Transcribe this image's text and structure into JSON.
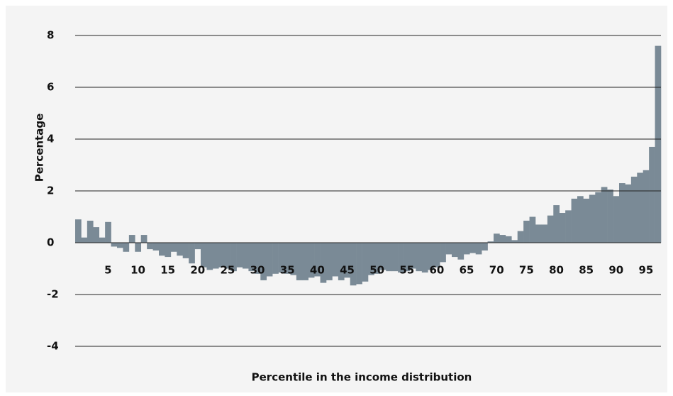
{
  "chart_data": {
    "type": "bar",
    "y_label": "Percentage",
    "x_label": "Percentile in the income distribution",
    "categories": [
      null,
      null,
      null,
      null,
      null,
      "5",
      null,
      null,
      null,
      null,
      "10",
      null,
      null,
      null,
      null,
      "15",
      null,
      null,
      null,
      null,
      "20",
      null,
      null,
      null,
      null,
      "25",
      null,
      null,
      null,
      null,
      "30",
      null,
      null,
      null,
      null,
      "35",
      null,
      null,
      null,
      null,
      "40",
      null,
      null,
      null,
      null,
      "45",
      null,
      null,
      null,
      null,
      "50",
      null,
      null,
      null,
      null,
      "55",
      null,
      null,
      null,
      null,
      "60",
      null,
      null,
      null,
      null,
      "65",
      null,
      null,
      null,
      null,
      "70",
      null,
      null,
      null,
      null,
      "75",
      null,
      null,
      null,
      null,
      "80",
      null,
      null,
      null,
      null,
      "85",
      null,
      null,
      null,
      null,
      "90",
      null,
      null,
      null,
      null,
      "95",
      null,
      null
    ],
    "values": [
      0.9,
      0.2,
      0.85,
      0.6,
      0.2,
      0.8,
      -0.15,
      -0.2,
      -0.35,
      0.3,
      -0.35,
      0.3,
      -0.25,
      -0.3,
      -0.5,
      -0.55,
      -0.35,
      -0.5,
      -0.6,
      -0.8,
      -0.25,
      -0.95,
      -1.05,
      -1.0,
      -0.95,
      -1.0,
      -1.1,
      -0.95,
      -1.0,
      -1.1,
      -1.2,
      -1.45,
      -1.3,
      -1.2,
      -1.15,
      -1.2,
      -1.25,
      -1.45,
      -1.45,
      -1.35,
      -1.3,
      -1.55,
      -1.45,
      -1.3,
      -1.45,
      -1.35,
      -1.65,
      -1.6,
      -1.5,
      -1.25,
      -1.2,
      -1.05,
      -1.1,
      -1.1,
      -1.15,
      -1.1,
      -1.0,
      -1.1,
      -1.15,
      -1.05,
      -0.95,
      -0.75,
      -0.45,
      -0.55,
      -0.65,
      -0.45,
      -0.4,
      -0.45,
      -0.3,
      0.05,
      0.35,
      0.3,
      0.25,
      0.1,
      0.45,
      0.85,
      1.0,
      0.7,
      0.7,
      1.05,
      1.45,
      1.15,
      1.25,
      1.7,
      1.8,
      1.7,
      1.85,
      1.95,
      2.15,
      2.05,
      1.8,
      2.3,
      2.25,
      2.55,
      2.7,
      2.8,
      3.7,
      7.6
    ],
    "color": "#7a8a96",
    "ylim": [
      -4,
      8.4
    ],
    "yticks": [
      -4,
      -2,
      0,
      2,
      4,
      6,
      8
    ],
    "grid": true
  }
}
